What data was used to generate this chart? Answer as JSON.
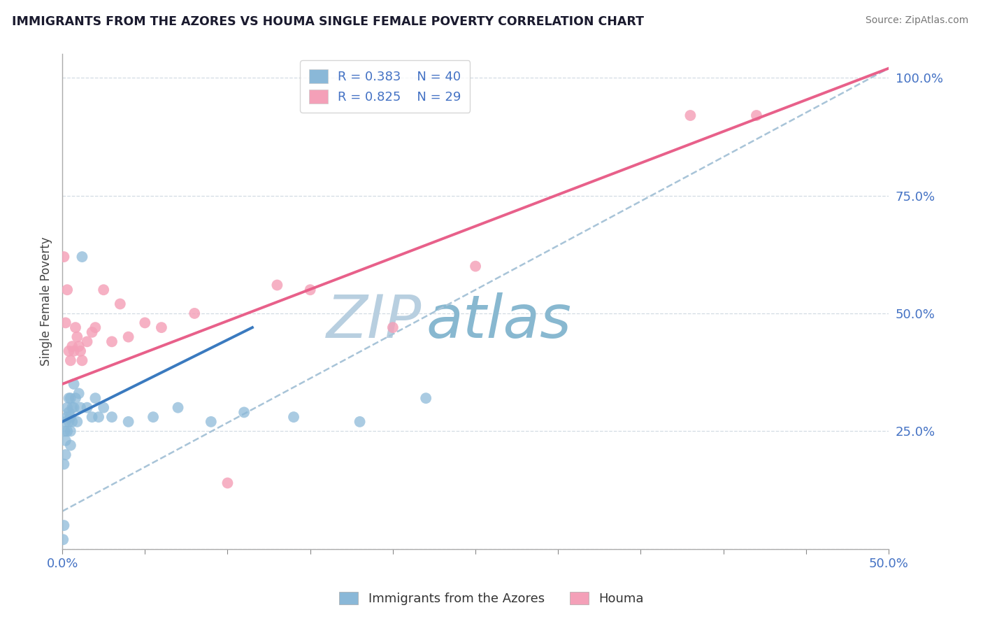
{
  "title": "IMMIGRANTS FROM THE AZORES VS HOUMA SINGLE FEMALE POVERTY CORRELATION CHART",
  "source": "Source: ZipAtlas.com",
  "ylabel": "Single Female Poverty",
  "legend_label1": "Immigrants from the Azores",
  "legend_label2": "Houma",
  "R1": 0.383,
  "N1": 40,
  "R2": 0.825,
  "N2": 29,
  "xlim": [
    0.0,
    0.5
  ],
  "ylim": [
    0.0,
    1.05
  ],
  "color_blue": "#8ab8d8",
  "color_pink": "#f4a0b8",
  "color_line_blue": "#3a7abf",
  "color_line_pink": "#e8608a",
  "color_dashed": "#a8c4d8",
  "watermark_zip": "ZIP",
  "watermark_atlas": "atlas",
  "watermark_color_zip": "#c8d8e8",
  "watermark_color_atlas": "#a8c8d8",
  "blue_points_x": [
    0.0005,
    0.001,
    0.001,
    0.0015,
    0.002,
    0.002,
    0.002,
    0.003,
    0.003,
    0.003,
    0.004,
    0.004,
    0.004,
    0.005,
    0.005,
    0.005,
    0.005,
    0.006,
    0.006,
    0.007,
    0.007,
    0.008,
    0.009,
    0.01,
    0.011,
    0.012,
    0.015,
    0.018,
    0.02,
    0.022,
    0.025,
    0.03,
    0.04,
    0.055,
    0.07,
    0.09,
    0.11,
    0.14,
    0.18,
    0.22
  ],
  "blue_points_y": [
    0.02,
    0.18,
    0.05,
    0.25,
    0.27,
    0.23,
    0.2,
    0.3,
    0.28,
    0.25,
    0.32,
    0.29,
    0.27,
    0.32,
    0.28,
    0.25,
    0.22,
    0.3,
    0.27,
    0.35,
    0.3,
    0.32,
    0.27,
    0.33,
    0.3,
    0.62,
    0.3,
    0.28,
    0.32,
    0.28,
    0.3,
    0.28,
    0.27,
    0.28,
    0.3,
    0.27,
    0.29,
    0.28,
    0.27,
    0.32
  ],
  "pink_points_x": [
    0.001,
    0.002,
    0.003,
    0.004,
    0.005,
    0.006,
    0.007,
    0.008,
    0.009,
    0.01,
    0.011,
    0.012,
    0.015,
    0.018,
    0.02,
    0.025,
    0.03,
    0.035,
    0.04,
    0.05,
    0.06,
    0.08,
    0.1,
    0.13,
    0.15,
    0.2,
    0.25,
    0.38,
    0.42
  ],
  "pink_points_y": [
    0.62,
    0.48,
    0.55,
    0.42,
    0.4,
    0.43,
    0.42,
    0.47,
    0.45,
    0.43,
    0.42,
    0.4,
    0.44,
    0.46,
    0.47,
    0.55,
    0.44,
    0.52,
    0.45,
    0.48,
    0.47,
    0.5,
    0.14,
    0.56,
    0.55,
    0.47,
    0.6,
    0.92,
    0.92
  ],
  "blue_line_x0": 0.0,
  "blue_line_x1": 0.115,
  "blue_line_y0": 0.27,
  "blue_line_y1": 0.47,
  "dashed_line_x0": 0.0,
  "dashed_line_x1": 0.5,
  "dashed_line_y0": 0.08,
  "dashed_line_y1": 1.02,
  "pink_line_x0": 0.0,
  "pink_line_x1": 0.5,
  "pink_line_y0": 0.35,
  "pink_line_y1": 1.02
}
